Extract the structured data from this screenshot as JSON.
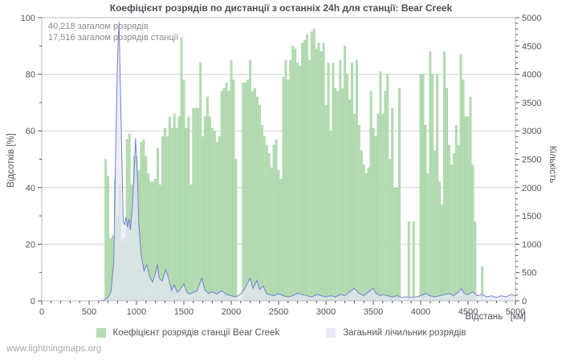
{
  "page": {
    "watermark": "www.lightningmaps.org"
  },
  "chart_data": {
    "type": "bar",
    "title": "Коефіцієнт розрядів по дистанції з останніх 24h для станції: Bear Creek",
    "annotations": [
      "40,218 загалом розрядів",
      "17,516 загалом розрядів станції"
    ],
    "x_axis": {
      "label": "Відстань   [км]",
      "min": 0,
      "max": 5000,
      "major_tick": 500,
      "minor_tick": 100
    },
    "y_left_axis": {
      "label": "Відсотків  [%]",
      "min": 0,
      "max": 100,
      "major_tick": 20,
      "minor_tick": 10
    },
    "y_right_axis": {
      "label": "Кількість",
      "min": 0,
      "max": 5000,
      "major_tick": 500,
      "minor_tick": 100
    },
    "grid": true,
    "legend": [
      {
        "label": "Коефіцієнт розрядів станції Bear Creek",
        "color": "#b5dcb3"
      },
      {
        "label": "Загаьний лічильник розрядів",
        "color": "#e9e9f8"
      }
    ],
    "series": [
      {
        "name": "Коефіцієнт розрядів станції Bear Creek",
        "type": "bar",
        "axis": "left",
        "fill": "#b5dcb3",
        "stroke": "#a3d2a1",
        "points": [
          [
            675,
            50
          ],
          [
            700,
            44
          ],
          [
            725,
            22
          ],
          [
            750,
            23
          ],
          [
            775,
            43
          ],
          [
            800,
            30
          ],
          [
            825,
            41
          ],
          [
            850,
            21
          ],
          [
            875,
            22
          ],
          [
            900,
            57
          ],
          [
            925,
            59
          ],
          [
            950,
            41
          ],
          [
            975,
            51
          ],
          [
            1000,
            51
          ],
          [
            1025,
            46
          ],
          [
            1050,
            56
          ],
          [
            1075,
            57
          ],
          [
            1100,
            51
          ],
          [
            1125,
            45
          ],
          [
            1150,
            42
          ],
          [
            1175,
            42
          ],
          [
            1200,
            43
          ],
          [
            1225,
            54
          ],
          [
            1250,
            41
          ],
          [
            1275,
            58
          ],
          [
            1300,
            61
          ],
          [
            1325,
            58
          ],
          [
            1350,
            65
          ],
          [
            1375,
            61
          ],
          [
            1400,
            66
          ],
          [
            1425,
            61
          ],
          [
            1450,
            65
          ],
          [
            1475,
            93
          ],
          [
            1500,
            78
          ],
          [
            1525,
            61
          ],
          [
            1550,
            65
          ],
          [
            1575,
            41
          ],
          [
            1600,
            68
          ],
          [
            1625,
            68
          ],
          [
            1650,
            68
          ],
          [
            1675,
            84
          ],
          [
            1700,
            58
          ],
          [
            1725,
            65
          ],
          [
            1750,
            72
          ],
          [
            1775,
            65
          ],
          [
            1800,
            61
          ],
          [
            1825,
            60
          ],
          [
            1850,
            56
          ],
          [
            1875,
            58
          ],
          [
            1900,
            74
          ],
          [
            1925,
            75
          ],
          [
            1950,
            77
          ],
          [
            1975,
            74
          ],
          [
            2000,
            85
          ],
          [
            2025,
            78
          ],
          [
            2050,
            50
          ],
          [
            2125,
            77
          ],
          [
            2150,
            77
          ],
          [
            2175,
            78
          ],
          [
            2200,
            85
          ],
          [
            2225,
            74
          ],
          [
            2250,
            75
          ],
          [
            2275,
            72
          ],
          [
            2300,
            69
          ],
          [
            2325,
            62
          ],
          [
            2350,
            58
          ],
          [
            2375,
            55
          ],
          [
            2400,
            52
          ],
          [
            2425,
            47
          ],
          [
            2450,
            55
          ],
          [
            2475,
            57
          ],
          [
            2500,
            46
          ],
          [
            2525,
            43
          ],
          [
            2550,
            79
          ],
          [
            2575,
            85
          ],
          [
            2600,
            78
          ],
          [
            2625,
            85
          ],
          [
            2650,
            90
          ],
          [
            2675,
            89
          ],
          [
            2700,
            84
          ],
          [
            2725,
            83
          ],
          [
            2750,
            91
          ],
          [
            2775,
            92
          ],
          [
            2800,
            94
          ],
          [
            2825,
            85
          ],
          [
            2850,
            95
          ],
          [
            2875,
            96
          ],
          [
            2900,
            89
          ],
          [
            2925,
            91
          ],
          [
            2950,
            88
          ],
          [
            2975,
            91
          ],
          [
            3000,
            69
          ],
          [
            3025,
            84
          ],
          [
            3050,
            60
          ],
          [
            3075,
            84
          ],
          [
            3100,
            75
          ],
          [
            3125,
            74
          ],
          [
            3150,
            85
          ],
          [
            3175,
            75
          ],
          [
            3200,
            90
          ],
          [
            3225,
            80
          ],
          [
            3250,
            71
          ],
          [
            3275,
            84
          ],
          [
            3300,
            66
          ],
          [
            3325,
            85
          ],
          [
            3350,
            62
          ],
          [
            3375,
            53
          ],
          [
            3400,
            48
          ],
          [
            3425,
            45
          ],
          [
            3450,
            47
          ],
          [
            3475,
            74
          ],
          [
            3500,
            61
          ],
          [
            3525,
            58
          ],
          [
            3550,
            66
          ],
          [
            3575,
            81
          ],
          [
            3600,
            66
          ],
          [
            3625,
            74
          ],
          [
            3650,
            80
          ],
          [
            3675,
            50
          ],
          [
            3700,
            68
          ],
          [
            3725,
            40
          ],
          [
            3750,
            40
          ],
          [
            3775,
            75
          ],
          [
            3875,
            28
          ],
          [
            3925,
            28
          ],
          [
            4000,
            80
          ],
          [
            4025,
            80
          ],
          [
            4050,
            62
          ],
          [
            4075,
            45
          ],
          [
            4100,
            88
          ],
          [
            4125,
            80
          ],
          [
            4150,
            53
          ],
          [
            4175,
            80
          ],
          [
            4200,
            42
          ],
          [
            4225,
            34
          ],
          [
            4250,
            88
          ],
          [
            4275,
            75
          ],
          [
            4300,
            55
          ],
          [
            4325,
            48
          ],
          [
            4350,
            52
          ],
          [
            4375,
            62
          ],
          [
            4400,
            55
          ],
          [
            4425,
            87
          ],
          [
            4450,
            78
          ],
          [
            4475,
            65
          ],
          [
            4500,
            65
          ],
          [
            4525,
            72
          ],
          [
            4550,
            48
          ],
          [
            4575,
            28
          ],
          [
            4650,
            12
          ]
        ]
      },
      {
        "name": "Загаьний лічильник розрядів",
        "type": "area-line",
        "axis": "right",
        "line_color": "#7280d0",
        "fill_color": "#e7e7f7",
        "points": [
          [
            0,
            0
          ],
          [
            600,
            0
          ],
          [
            650,
            10
          ],
          [
            700,
            60
          ],
          [
            730,
            150
          ],
          [
            760,
            700
          ],
          [
            780,
            2600
          ],
          [
            800,
            4300
          ],
          [
            815,
            4930
          ],
          [
            830,
            3800
          ],
          [
            845,
            2600
          ],
          [
            860,
            1400
          ],
          [
            875,
            1350
          ],
          [
            890,
            1480
          ],
          [
            905,
            1300
          ],
          [
            920,
            1450
          ],
          [
            935,
            1250
          ],
          [
            955,
            1600
          ],
          [
            975,
            2250
          ],
          [
            990,
            2870
          ],
          [
            1010,
            2150
          ],
          [
            1025,
            1350
          ],
          [
            1050,
            800
          ],
          [
            1080,
            530
          ],
          [
            1110,
            640
          ],
          [
            1140,
            420
          ],
          [
            1170,
            330
          ],
          [
            1200,
            480
          ],
          [
            1220,
            640
          ],
          [
            1240,
            400
          ],
          [
            1270,
            350
          ],
          [
            1310,
            550
          ],
          [
            1340,
            400
          ],
          [
            1370,
            180
          ],
          [
            1400,
            280
          ],
          [
            1430,
            150
          ],
          [
            1460,
            200
          ],
          [
            1500,
            300
          ],
          [
            1530,
            160
          ],
          [
            1560,
            120
          ],
          [
            1600,
            150
          ],
          [
            1640,
            180
          ],
          [
            1690,
            400
          ],
          [
            1720,
            200
          ],
          [
            1760,
            130
          ],
          [
            1800,
            160
          ],
          [
            1850,
            120
          ],
          [
            1900,
            180
          ],
          [
            1950,
            110
          ],
          [
            2000,
            90
          ],
          [
            2050,
            70
          ],
          [
            2100,
            120
          ],
          [
            2150,
            240
          ],
          [
            2200,
            400
          ],
          [
            2230,
            220
          ],
          [
            2270,
            360
          ],
          [
            2300,
            200
          ],
          [
            2340,
            260
          ],
          [
            2370,
            130
          ],
          [
            2400,
            110
          ],
          [
            2450,
            90
          ],
          [
            2500,
            130
          ],
          [
            2550,
            90
          ],
          [
            2600,
            70
          ],
          [
            2650,
            90
          ],
          [
            2700,
            130
          ],
          [
            2750,
            110
          ],
          [
            2800,
            90
          ],
          [
            2850,
            70
          ],
          [
            2900,
            110
          ],
          [
            2950,
            90
          ],
          [
            3000,
            70
          ],
          [
            3050,
            90
          ],
          [
            3100,
            70
          ],
          [
            3150,
            110
          ],
          [
            3200,
            90
          ],
          [
            3250,
            160
          ],
          [
            3300,
            220
          ],
          [
            3350,
            130
          ],
          [
            3400,
            90
          ],
          [
            3450,
            160
          ],
          [
            3500,
            220
          ],
          [
            3530,
            130
          ],
          [
            3570,
            90
          ],
          [
            3600,
            110
          ],
          [
            3650,
            90
          ],
          [
            3700,
            70
          ],
          [
            3750,
            90
          ],
          [
            3800,
            60
          ],
          [
            3850,
            70
          ],
          [
            3900,
            60
          ],
          [
            3950,
            70
          ],
          [
            4000,
            90
          ],
          [
            4050,
            130
          ],
          [
            4100,
            90
          ],
          [
            4150,
            70
          ],
          [
            4200,
            90
          ],
          [
            4250,
            110
          ],
          [
            4300,
            130
          ],
          [
            4350,
            90
          ],
          [
            4400,
            160
          ],
          [
            4430,
            220
          ],
          [
            4460,
            130
          ],
          [
            4500,
            110
          ],
          [
            4550,
            160
          ],
          [
            4600,
            90
          ],
          [
            4650,
            110
          ],
          [
            4700,
            70
          ],
          [
            4750,
            90
          ],
          [
            4800,
            60
          ],
          [
            4850,
            90
          ],
          [
            4900,
            70
          ],
          [
            4950,
            110
          ],
          [
            5000,
            90
          ]
        ]
      }
    ],
    "colors": {
      "grid": "#cfcfcf",
      "frame": "#b4bcc8",
      "tick": "#555555",
      "tick_label": "#52525a"
    }
  }
}
